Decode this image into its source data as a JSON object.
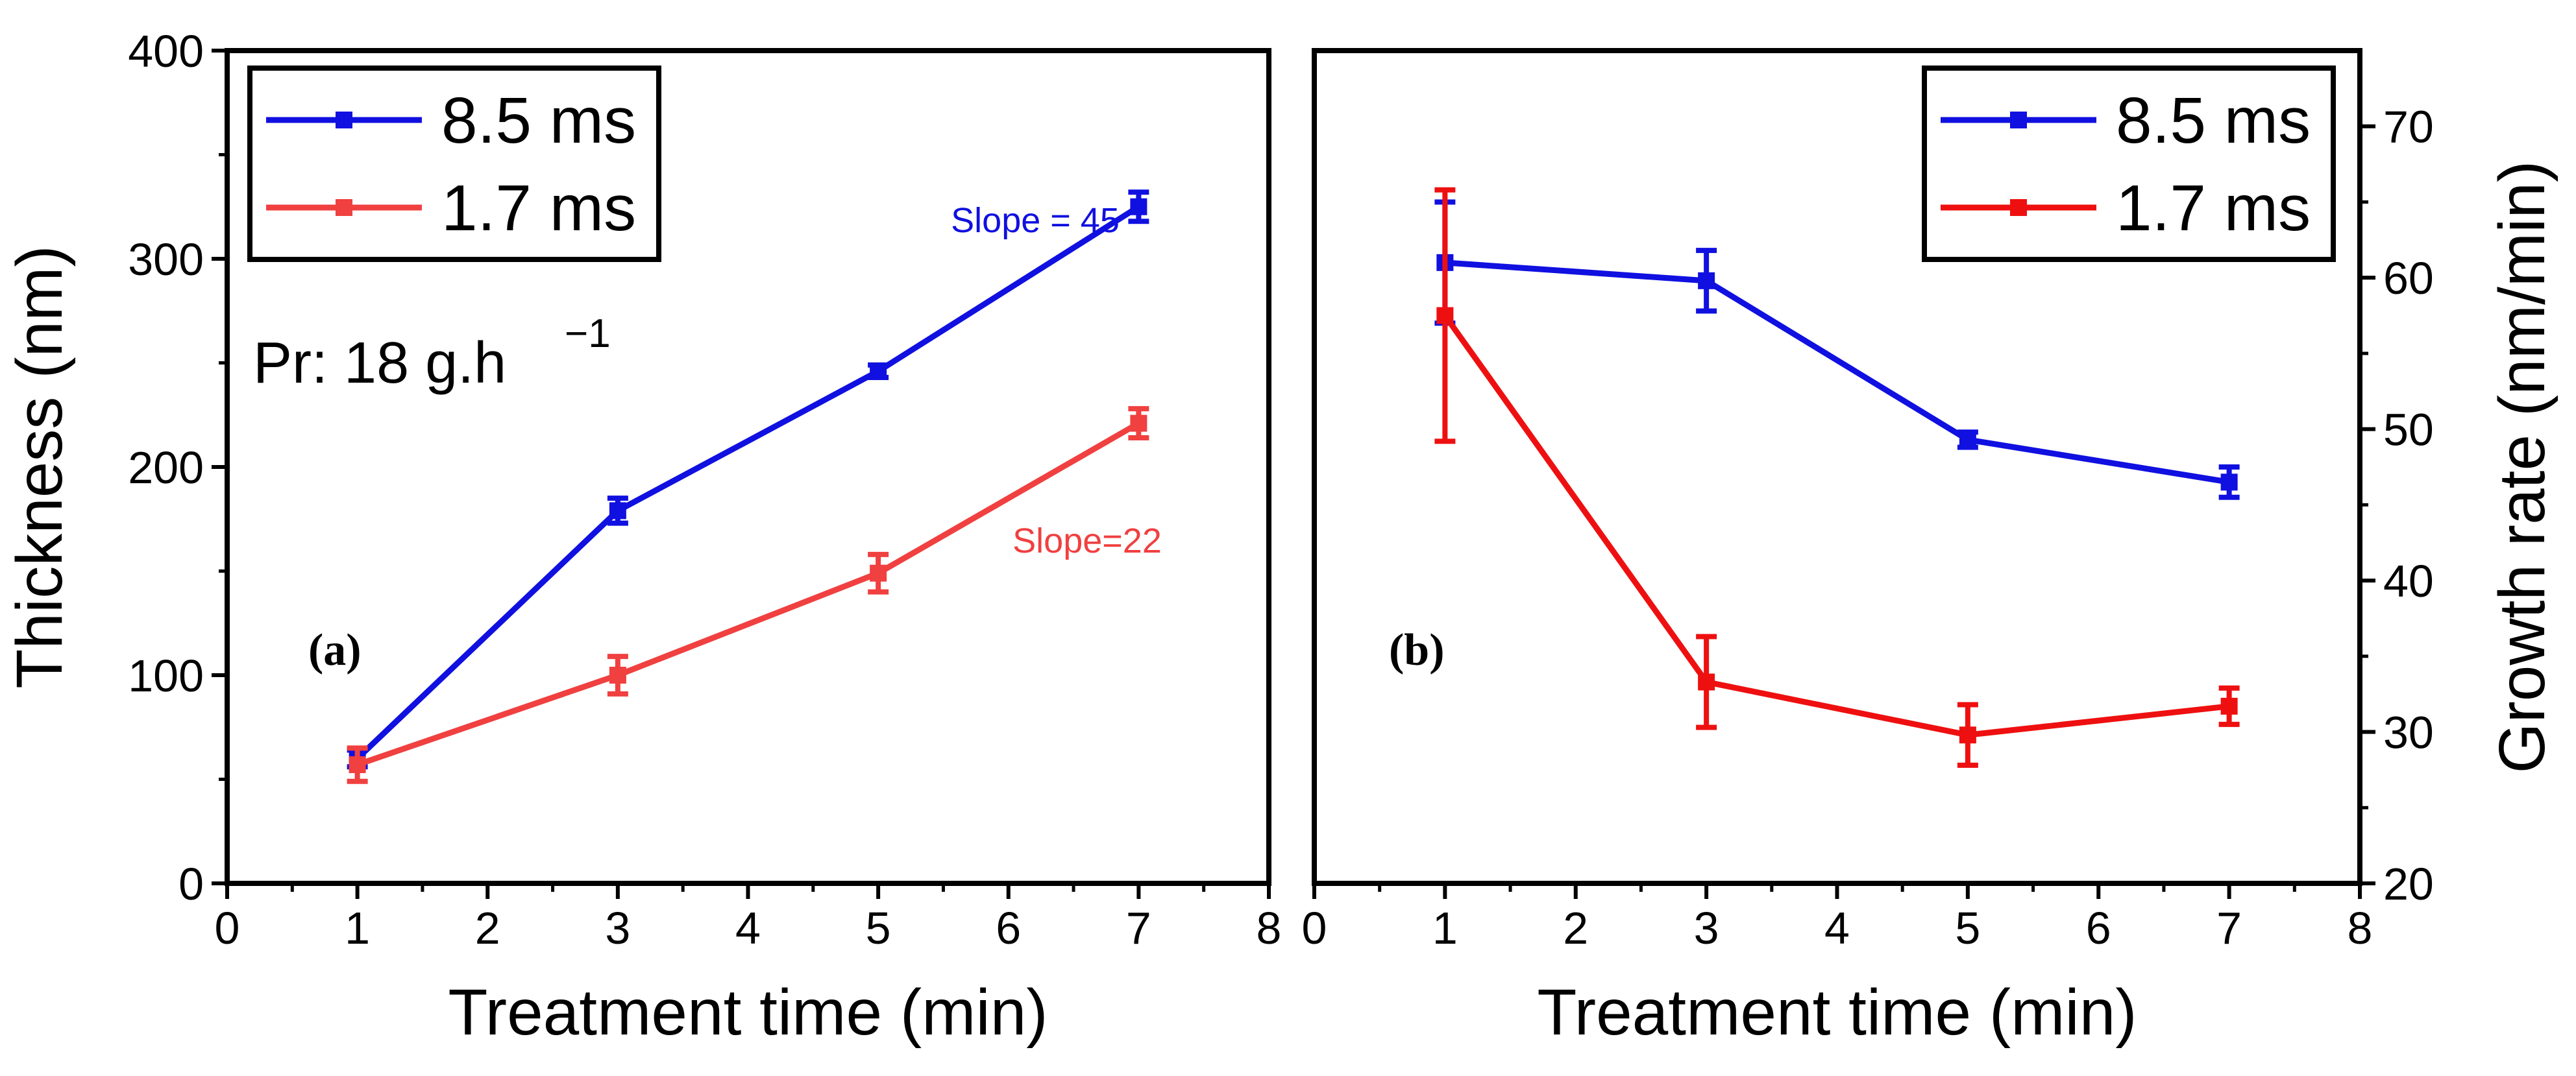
{
  "chart_data": [
    {
      "panel": "(a)",
      "type": "line",
      "xlabel": "Treatment time (min)",
      "ylabel": "Thickness (nm)",
      "xlim": [
        0,
        8
      ],
      "ylim": [
        0,
        400
      ],
      "xticks": [
        "0",
        "1",
        "2",
        "3",
        "4",
        "5",
        "6",
        "7",
        "8"
      ],
      "yticks": [
        "0",
        "100",
        "200",
        "300",
        "400"
      ],
      "grid": false,
      "legend_position": "top-left",
      "note_main": "Pr: 18 g.h",
      "note_sup": "−1",
      "series": [
        {
          "name": "8.5 ms",
          "color": "#1010e0",
          "x": [
            1,
            3,
            5,
            7
          ],
          "y": [
            60,
            179,
            246,
            325
          ],
          "err": [
            4,
            6,
            3,
            7
          ],
          "annotation": "Slope = 45"
        },
        {
          "name": "1.7 ms",
          "color": "#f04040",
          "x": [
            1,
            3,
            5,
            7
          ],
          "y": [
            57,
            100,
            149,
            221
          ],
          "err": [
            8,
            9,
            9,
            7
          ],
          "annotation": "Slope=22"
        }
      ]
    },
    {
      "panel": "(b)",
      "type": "line",
      "xlabel": "Treatment time (min)",
      "ylabel": "Growth rate (nm/min)",
      "xlim": [
        0,
        8
      ],
      "ylim": [
        20,
        75
      ],
      "xticks": [
        "0",
        "1",
        "2",
        "3",
        "4",
        "5",
        "6",
        "7",
        "8"
      ],
      "yticks": [
        "20",
        "30",
        "40",
        "50",
        "60",
        "70"
      ],
      "y_axis_side": "right",
      "grid": false,
      "legend_position": "top-right",
      "series": [
        {
          "name": "8.5 ms",
          "color": "#1010e0",
          "x": [
            1,
            3,
            5,
            7
          ],
          "y": [
            61,
            59.8,
            49.3,
            46.5
          ],
          "err": [
            4,
            2,
            0.5,
            1
          ]
        },
        {
          "name": "1.7 ms",
          "color": "#ee1010",
          "x": [
            1,
            3,
            5,
            7
          ],
          "y": [
            57.5,
            33.3,
            29.8,
            31.7
          ],
          "err": [
            8.3,
            3,
            2,
            1.2
          ]
        }
      ]
    }
  ]
}
